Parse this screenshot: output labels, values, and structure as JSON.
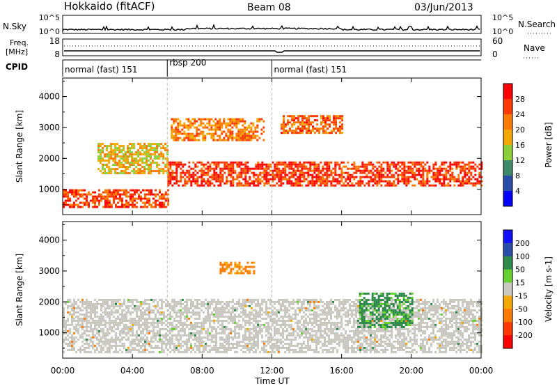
{
  "header": {
    "station": "Hokkaido (fitACF)",
    "beam": "Beam 08",
    "date": "03/Jun/2013"
  },
  "noise_panel": {
    "left_label": "N.Sky",
    "right_label": "N.Search",
    "left_ticks": [
      "10^5",
      "10^0"
    ],
    "right_ticks": [
      "10^5",
      "10^0"
    ]
  },
  "freq_panel": {
    "left_label_1": "Freq.",
    "left_label_2": "[MHz]",
    "right_label": "Nave",
    "left_ticks": [
      "18",
      "8"
    ],
    "right_ticks": [
      "60",
      "0"
    ]
  },
  "cpid": {
    "label": "CPID",
    "segments": [
      {
        "name": "normal (fast) 151",
        "start_hour": 0
      },
      {
        "name": "rbsp 200",
        "start_hour": 6
      },
      {
        "name": "normal (fast) 151",
        "start_hour": 12
      }
    ]
  },
  "x_axis": {
    "label": "Time UT",
    "ticks": [
      "00:00",
      "04:00",
      "08:00",
      "12:00",
      "16:00",
      "20:00",
      "00:00"
    ]
  },
  "colors": {
    "power_scale": [
      "#0000ff",
      "#2a4ea8",
      "#3f8a6a",
      "#8bd03a",
      "#f2a800",
      "#ff7a00",
      "#ff3a00",
      "#ff0000"
    ],
    "velocity_scale": [
      "#1010ff",
      "#2a4ea8",
      "#2e8a4a",
      "#66d030",
      "#c8c8c0",
      "#f2a800",
      "#ff7a00",
      "#ff3a00",
      "#ff0000"
    ],
    "ground_scatter": "#c8c8c0"
  },
  "chart_data": [
    {
      "type": "heatmap",
      "title": "Power",
      "xlabel": "",
      "ylabel": "Slant Range [km]",
      "xlim_hours": [
        0,
        24
      ],
      "ylim_km": [
        180,
        4600
      ],
      "yticks": [
        "1000",
        "2000",
        "3000",
        "4000"
      ],
      "colorbar": {
        "label": "Power [dB]",
        "ticks": [
          "4",
          "8",
          "12",
          "16",
          "20",
          "24",
          "28"
        ],
        "range": [
          0,
          32
        ]
      },
      "features": [
        {
          "desc": "strong band",
          "hours": [
            0,
            6
          ],
          "range_km": [
            400,
            1000
          ],
          "value_db": 26
        },
        {
          "desc": "strong band",
          "hours": [
            6,
            24
          ],
          "range_km": [
            1100,
            1900
          ],
          "value_db": 27
        },
        {
          "desc": "rising echo",
          "hours": [
            2,
            6
          ],
          "range_km": [
            1500,
            2500
          ],
          "value_db": 18
        },
        {
          "desc": "upper echo",
          "hours": [
            6.2,
            11.5
          ],
          "range_km": [
            2600,
            3300
          ],
          "value_db": 22
        },
        {
          "desc": "upper echo",
          "hours": [
            12.5,
            16
          ],
          "range_km": [
            2800,
            3400
          ],
          "value_db": 24
        }
      ]
    },
    {
      "type": "heatmap",
      "title": "Velocity",
      "xlabel": "Time UT",
      "ylabel": "Slant Range [km]",
      "xlim_hours": [
        0,
        24
      ],
      "ylim_km": [
        180,
        4600
      ],
      "yticks": [
        "1000",
        "2000",
        "3000",
        "4000"
      ],
      "colorbar": {
        "label": "Velocity [m s-1]",
        "ticks": [
          "200",
          "100",
          "50",
          "15",
          "-15",
          "-50",
          "-100",
          "-200"
        ],
        "range": [
          -250,
          250
        ]
      },
      "features": [
        {
          "desc": "ground scatter",
          "hours": [
            0,
            24
          ],
          "range_km": [
            400,
            2100
          ],
          "value_ms": 0
        },
        {
          "desc": "positive velocity arc",
          "hours": [
            17,
            20
          ],
          "range_km": [
            1200,
            2300
          ],
          "value_ms": 60
        },
        {
          "desc": "negative velocity patch",
          "hours": [
            9,
            11
          ],
          "range_km": [
            2900,
            3300
          ],
          "value_ms": -60
        }
      ]
    }
  ]
}
